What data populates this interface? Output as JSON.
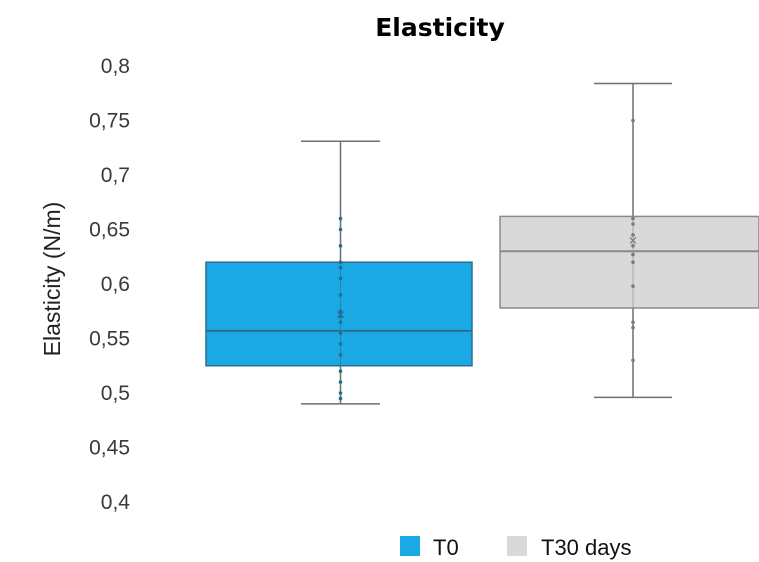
{
  "chart_data": {
    "type": "box",
    "title": "Elasticity",
    "ylabel": "Elasticity (N/m)",
    "xlabel": "",
    "ylim": [
      0.4,
      0.8
    ],
    "yticks": [
      "0,4",
      "0,45",
      "0,5",
      "0,55",
      "0,6",
      "0,65",
      "0,7",
      "0,75",
      "0,8"
    ],
    "ytick_values": [
      0.4,
      0.45,
      0.5,
      0.55,
      0.6,
      0.65,
      0.7,
      0.75,
      0.8
    ],
    "grid": false,
    "legend_position": "bottom",
    "series": [
      {
        "name": "T0",
        "color": "#1ba9e6",
        "whisker_low": 0.49,
        "q1": 0.525,
        "median": 0.557,
        "q3": 0.62,
        "whisker_high": 0.731,
        "mean": 0.572,
        "points": [
          0.495,
          0.5,
          0.51,
          0.52,
          0.535,
          0.545,
          0.555,
          0.565,
          0.57,
          0.575,
          0.59,
          0.605,
          0.615,
          0.62,
          0.635,
          0.65,
          0.66
        ]
      },
      {
        "name": "T30 days",
        "color": "#d9d9d9",
        "whisker_low": 0.496,
        "q1": 0.578,
        "median": 0.63,
        "q3": 0.662,
        "whisker_high": 0.784,
        "mean": 0.64,
        "points": [
          0.53,
          0.56,
          0.565,
          0.598,
          0.62,
          0.627,
          0.635,
          0.645,
          0.655,
          0.66,
          0.75
        ]
      }
    ]
  }
}
